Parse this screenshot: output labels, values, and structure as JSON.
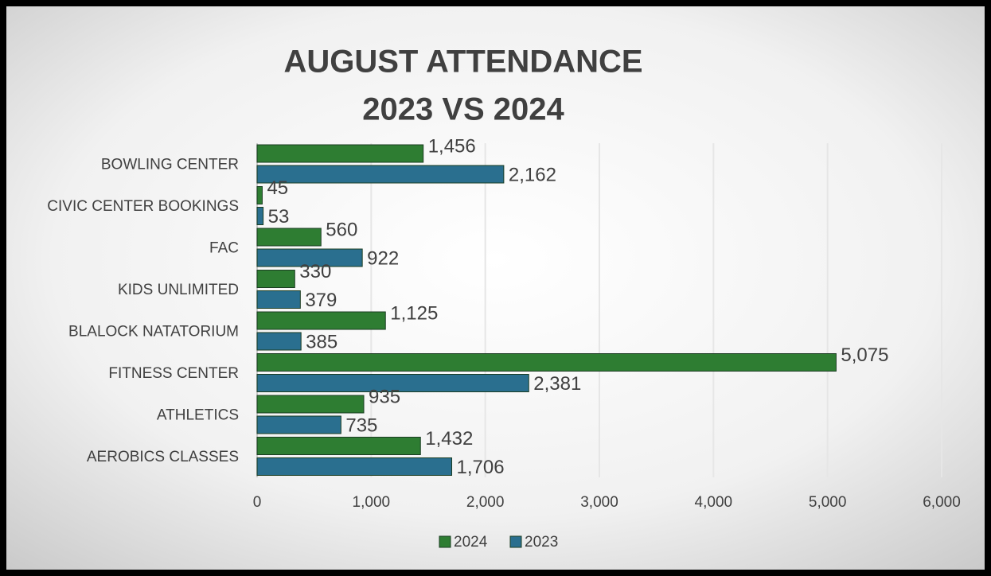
{
  "chart_data": {
    "type": "bar",
    "orientation": "horizontal",
    "title": [
      "AUGUST ATTENDANCE",
      "2023 VS 2024"
    ],
    "categories": [
      "BOWLING CENTER",
      "CIVIC CENTER BOOKINGS",
      "FAC",
      "KIDS UNLIMITED",
      "BLALOCK NATATORIUM",
      "FITNESS CENTER",
      "ATHLETICS",
      "AEROBICS CLASSES"
    ],
    "series": [
      {
        "name": "2024",
        "color": "#2e7d32",
        "values": [
          1456,
          45,
          560,
          330,
          1125,
          5075,
          935,
          1432
        ],
        "value_labels": [
          "1,456",
          "45",
          "560",
          "330",
          "1,125",
          "5,075",
          "935",
          "1,432"
        ]
      },
      {
        "name": "2023",
        "color": "#2a6f8f",
        "values": [
          2162,
          53,
          922,
          379,
          385,
          2381,
          735,
          1706
        ],
        "value_labels": [
          "2,162",
          "53",
          "922",
          "379",
          "385",
          "2,381",
          "735",
          "1,706"
        ]
      }
    ],
    "xlim": [
      0,
      6000
    ],
    "xticks": [
      0,
      {
        "value": 1000,
        "label": "1,000"
      },
      {
        "value": 2000,
        "label": "2,000"
      },
      {
        "value": 3000,
        "label": "3,000"
      },
      {
        "value": 4000,
        "label": "4,000"
      },
      {
        "value": 5000,
        "label": "5,000"
      },
      {
        "value": 6000,
        "label": "6,000"
      }
    ],
    "grid": true,
    "legend": "bottom"
  }
}
